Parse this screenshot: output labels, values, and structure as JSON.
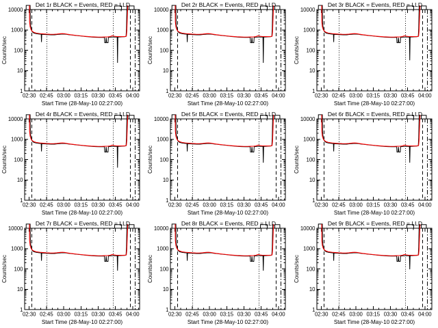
{
  "window": {
    "background_color": "#ffffff",
    "kind": "plot-window-3x3-grid"
  },
  "chart_data": {
    "type": "line",
    "layout": "3x3-grid",
    "title_suffix": "BLACK = Events, RED = LLD",
    "xlabel": "Start Time (28-May-10 02:27:00)",
    "ylabel": "Counts/sec",
    "legend": {
      "black_series": "Events",
      "red_series": "LLD"
    },
    "colors": {
      "events": "#000000",
      "lld": "#ff0000",
      "axes": "#000000",
      "background": "#ffffff"
    },
    "y_axis": {
      "scale": "log",
      "range_counts": [
        1,
        10000
      ],
      "tick_labels": [
        "10000",
        "1000",
        "100",
        "10",
        "1"
      ],
      "tick_values": [
        10000,
        1000,
        100,
        10,
        1
      ]
    },
    "x_axis": {
      "range_minutes": [
        0,
        100
      ],
      "start_time": "02:26",
      "tick_labels": [
        "02:30",
        "02:45",
        "03:00",
        "03:15",
        "03:30",
        "03:45",
        "04:00"
      ],
      "major_minutes": [
        4,
        19,
        34,
        49,
        64,
        79,
        94
      ],
      "minor_minutes": [
        9,
        14,
        24,
        29,
        39,
        44,
        54,
        59,
        69,
        74,
        84,
        89,
        99
      ]
    },
    "ref_lines": [
      {
        "t": 6.3,
        "style": "dashed",
        "name": "left-dashed"
      },
      {
        "t": 19.3,
        "style": "dotted",
        "name": "left-dotted"
      },
      {
        "t": 77.0,
        "style": "dotted",
        "name": "right-dotted"
      },
      {
        "t": 92.0,
        "style": "dashed",
        "name": "right-dashed"
      },
      {
        "t": 96.0,
        "style": "dashdot",
        "name": "edge-dashdot"
      }
    ],
    "series_base": {
      "red_lld": [
        [
          4.17,
          16000
        ],
        [
          4.3,
          2500
        ],
        [
          4.8,
          1400
        ],
        [
          5.5,
          1050
        ],
        [
          6.5,
          870
        ],
        [
          8,
          760
        ],
        [
          10,
          700
        ],
        [
          13,
          660
        ],
        [
          16,
          640
        ],
        [
          19,
          620
        ],
        [
          22,
          608
        ],
        [
          25,
          605
        ],
        [
          28,
          618
        ],
        [
          31,
          648
        ],
        [
          33,
          658
        ],
        [
          35,
          648
        ],
        [
          37,
          615
        ],
        [
          40,
          578
        ],
        [
          43,
          552
        ],
        [
          46,
          528
        ],
        [
          49,
          508
        ],
        [
          52,
          488
        ],
        [
          55,
          472
        ],
        [
          58,
          458
        ],
        [
          61,
          450
        ],
        [
          64,
          444
        ],
        [
          67,
          444
        ],
        [
          70,
          450
        ],
        [
          72.5,
          455
        ],
        [
          74.5,
          470
        ],
        [
          75.8,
          505
        ],
        [
          76.8,
          512
        ],
        [
          77.8,
          488
        ],
        [
          79.5,
          474
        ],
        [
          81.5,
          470
        ],
        [
          83.5,
          468
        ],
        [
          85.5,
          468
        ],
        [
          87.5,
          472
        ],
        [
          88.5,
          500
        ],
        [
          88.9,
          900
        ],
        [
          89.3,
          4000
        ],
        [
          89.7,
          16000
        ]
      ],
      "black_events": [
        [
          1.3,
          9500
        ],
        [
          1.35,
          16000
        ],
        [
          4.8,
          16000
        ],
        [
          5.0,
          2200
        ],
        [
          5.6,
          1100
        ],
        [
          6.5,
          820
        ],
        [
          8,
          700
        ],
        [
          10,
          650
        ],
        [
          12.5,
          622
        ],
        [
          14.4,
          608
        ],
        [
          14.65,
          250
        ],
        [
          14.9,
          605
        ],
        [
          17,
          592
        ],
        [
          20,
          580
        ],
        [
          23,
          568
        ],
        [
          26,
          572
        ],
        [
          29,
          600
        ],
        [
          32,
          618
        ],
        [
          34,
          622
        ],
        [
          36,
          608
        ],
        [
          38,
          582
        ],
        [
          41,
          558
        ],
        [
          44,
          535
        ],
        [
          47,
          512
        ],
        [
          50,
          492
        ],
        [
          53,
          472
        ],
        [
          56,
          455
        ],
        [
          59,
          440
        ],
        [
          62,
          430
        ],
        [
          65,
          425
        ],
        [
          67.5,
          428
        ],
        [
          69.4,
          432
        ],
        [
          69.65,
          235
        ],
        [
          70.6,
          232
        ],
        [
          70.9,
          415
        ],
        [
          71.35,
          235
        ],
        [
          72.55,
          235
        ],
        [
          72.85,
          428
        ],
        [
          74.5,
          438
        ],
        [
          76.5,
          442
        ],
        [
          78.5,
          445
        ],
        [
          80.5,
          444
        ],
        [
          80.8,
          null
        ],
        [
          81.1,
          444
        ],
        [
          83,
          450
        ],
        [
          85,
          455
        ],
        [
          87,
          462
        ],
        [
          88.2,
          478
        ],
        [
          88.6,
          1200
        ],
        [
          88.95,
          16000
        ]
      ],
      "black_overflow_segments": [
        [
          [
            78.3,
            9500
          ],
          [
            78.33,
            15000
          ],
          [
            84.2,
            15000
          ],
          [
            84.23,
            9500
          ]
        ],
        [
          [
            90.8,
            9500
          ],
          [
            90.83,
            15000
          ],
          [
            95.2,
            15000
          ],
          [
            95.23,
            9500
          ]
        ]
      ]
    },
    "panels": [
      {
        "title": "Det 1r BLACK = Events, RED = LLD",
        "deep_spike_minute": 80.8,
        "deep_spike_counts": 24
      },
      {
        "title": "Det 2r BLACK = Events, RED = LLD",
        "deep_spike_minute": 80.8,
        "deep_spike_counts": 24
      },
      {
        "title": "Det 3r BLACK = Events, RED = LLD",
        "deep_spike_minute": 80.8,
        "deep_spike_counts": 32
      },
      {
        "title": "Det 4r BLACK = Events, RED = LLD",
        "deep_spike_minute": 80.8,
        "deep_spike_counts": 40
      },
      {
        "title": "Det 5r BLACK = Events, RED = LLD",
        "deep_spike_minute": 80.8,
        "deep_spike_counts": 70
      },
      {
        "title": "Det 6r BLACK = Events, RED = LLD",
        "deep_spike_minute": 80.8,
        "deep_spike_counts": 70
      },
      {
        "title": "Det 7r BLACK = Events, RED = LLD",
        "deep_spike_minute": 80.8,
        "deep_spike_counts": 82
      },
      {
        "title": "Det 8r BLACK = Events, RED = LLD",
        "deep_spike_minute": 80.8,
        "deep_spike_counts": 82
      },
      {
        "title": "Det 9r BLACK = Events, RED = LLD",
        "deep_spike_minute": 80.8,
        "deep_spike_counts": 95
      }
    ]
  }
}
